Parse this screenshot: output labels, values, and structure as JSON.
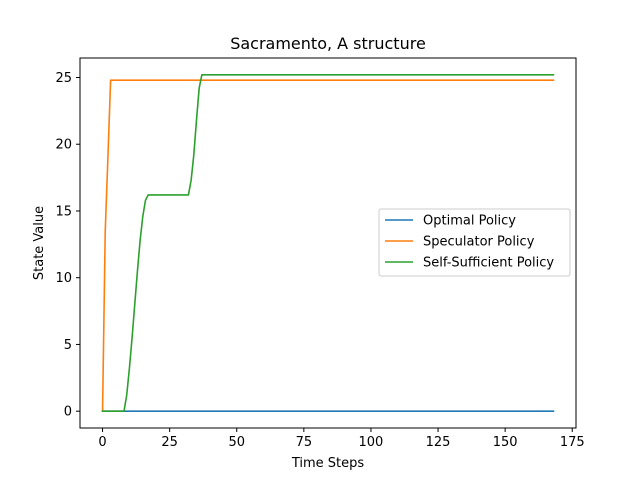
{
  "chart_data": {
    "type": "line",
    "title": "Sacramento, A structure",
    "xlabel": "Time Steps",
    "ylabel": "State Value",
    "xlim": [
      -8.4,
      176.4
    ],
    "ylim": [
      -1.26,
      26.46
    ],
    "xticks": [
      0,
      25,
      50,
      75,
      100,
      125,
      150,
      175
    ],
    "yticks": [
      0,
      5,
      10,
      15,
      20,
      25
    ],
    "grid": false,
    "legend_position": "center-right",
    "series": [
      {
        "name": "Optimal Policy",
        "color": "#1f77b4",
        "points": [
          [
            0,
            0
          ],
          [
            168,
            0
          ]
        ]
      },
      {
        "name": "Speculator Policy",
        "color": "#ff7f0e",
        "points": [
          [
            0,
            0
          ],
          [
            1,
            13.5
          ],
          [
            2,
            19
          ],
          [
            3,
            24.8
          ],
          [
            168,
            24.8
          ]
        ]
      },
      {
        "name": "Self-Sufficient Policy",
        "color": "#2ca02c",
        "points": [
          [
            0,
            0
          ],
          [
            8,
            0
          ],
          [
            9,
            1.2
          ],
          [
            10,
            3.2
          ],
          [
            11,
            5.5
          ],
          [
            12,
            8
          ],
          [
            13,
            10.5
          ],
          [
            14,
            12.8
          ],
          [
            15,
            14.6
          ],
          [
            16,
            15.8
          ],
          [
            17,
            16.2
          ],
          [
            32,
            16.2
          ],
          [
            33,
            17.3
          ],
          [
            34,
            19.2
          ],
          [
            35,
            21.8
          ],
          [
            36,
            24.2
          ],
          [
            37,
            25.2
          ],
          [
            168,
            25.2
          ]
        ]
      }
    ]
  }
}
